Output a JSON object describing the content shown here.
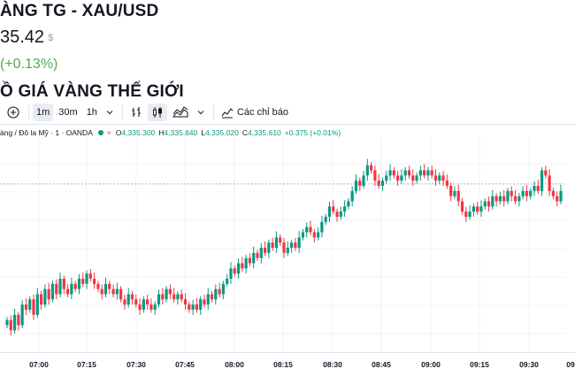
{
  "header": {
    "title": "ÀNG TG - XAU/USD",
    "price": "35.42",
    "price_unit": "$",
    "change": "(+0.13%)",
    "section_heading": "Ồ GIÁ VÀNG THẾ GIỚI"
  },
  "toolbar": {
    "intervals": [
      "1m",
      "30m",
      "1h"
    ],
    "indicators_label": "Các chỉ báo"
  },
  "legend": {
    "symbol": "àng / Đô la Mỹ · 1 · OANDA",
    "open_key": "O",
    "open": "4,335.300",
    "high_key": "H",
    "high": "4,335.840",
    "low_key": "L",
    "low": "4,335.020",
    "close_key": "C",
    "close": "4,335.610",
    "change": "+0.375 (+0.01%)"
  },
  "time_axis": [
    "07:00",
    "07:15",
    "07:30",
    "07:45",
    "08:00",
    "08:15",
    "08:30",
    "08:45",
    "09:00",
    "09:15",
    "09:30",
    "09"
  ],
  "colors": {
    "up": "#089981",
    "down": "#f23645",
    "change_green": "#4caf50"
  },
  "chart_data": {
    "type": "candlestick",
    "x_start": "06:50",
    "x_end": "09:35",
    "ohlc_close_path": [
      4321,
      4319,
      4322,
      4320,
      4324,
      4323,
      4325,
      4322,
      4326,
      4324,
      4327,
      4325,
      4328,
      4326,
      4329,
      4327,
      4326,
      4328,
      4327,
      4329,
      4328,
      4330,
      4329,
      4328,
      4327,
      4326,
      4328,
      4327,
      4326,
      4327,
      4325,
      4324,
      4326,
      4325,
      4324,
      4323,
      4325,
      4324,
      4323,
      4324,
      4326,
      4325,
      4327,
      4326,
      4325,
      4326,
      4325,
      4324,
      4323,
      4324,
      4323,
      4325,
      4324,
      4326,
      4325,
      4327,
      4326,
      4328,
      4329,
      4331,
      4330,
      4332,
      4331,
      4333,
      4332,
      4334,
      4333,
      4335,
      4334,
      4336,
      4335,
      4337,
      4336,
      4334,
      4335,
      4336,
      4335,
      4337,
      4338,
      4339,
      4338,
      4337,
      4338,
      4340,
      4341,
      4343,
      4342,
      4341,
      4342,
      4343,
      4344,
      4346,
      4348,
      4347,
      4349,
      4351,
      4350,
      4348,
      4347,
      4348,
      4349,
      4350,
      4349,
      4348,
      4349,
      4350,
      4349,
      4348,
      4349,
      4350,
      4349,
      4350,
      4349,
      4348,
      4349,
      4348,
      4347,
      4345,
      4346,
      4344,
      4342,
      4341,
      4342,
      4343,
      4342,
      4343,
      4344,
      4343,
      4345,
      4344,
      4345,
      4344,
      4346,
      4345,
      4344,
      4345,
      4346,
      4345,
      4346,
      4347,
      4346,
      4350,
      4349,
      4346,
      4345,
      4344,
      4346
    ]
  }
}
